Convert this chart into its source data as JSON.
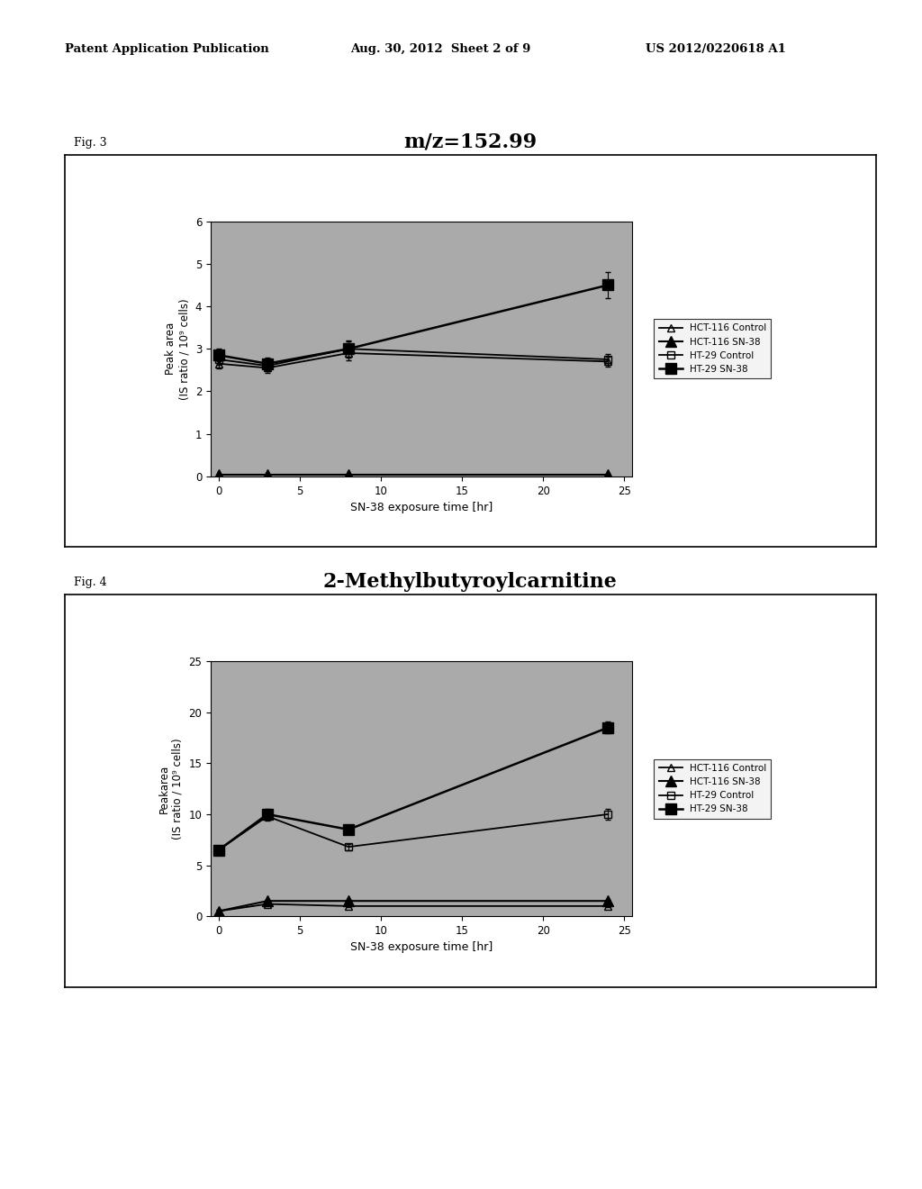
{
  "header_left": "Patent Application Publication",
  "header_center": "Aug. 30, 2012  Sheet 2 of 9",
  "header_right": "US 2012/0220618 A1",
  "fig3_label": "Fig. 3",
  "fig4_label": "Fig. 4",
  "fig3_title": "m/z=152.99",
  "fig4_title": "2-Methylbutyroylcarnitine",
  "xlabel": "SN-38 exposure time [hr]",
  "fig3_ylabel": "Peak area\n(IS ratio / 10⁹ cells)",
  "fig4_ylabel": "Peakarea\n(IS ratio / 10⁹ cells)",
  "x_ticks": [
    0,
    5,
    10,
    15,
    20,
    25
  ],
  "fig3_ylim": [
    0,
    6
  ],
  "fig3_yticks": [
    0,
    1,
    2,
    3,
    4,
    5,
    6
  ],
  "fig4_ylim": [
    0,
    25
  ],
  "fig4_yticks": [
    0,
    5,
    10,
    15,
    20,
    25
  ],
  "fig3_series": {
    "HCT-116 Control": {
      "x": [
        0,
        3,
        8,
        24
      ],
      "y": [
        2.65,
        2.55,
        2.9,
        2.7
      ],
      "yerr": [
        0.12,
        0.12,
        0.18,
        0.12
      ]
    },
    "HCT-116 SN-38": {
      "x": [
        0,
        3,
        8,
        24
      ],
      "y": [
        0.03,
        0.03,
        0.03,
        0.03
      ],
      "yerr": [
        0.01,
        0.01,
        0.01,
        0.01
      ]
    },
    "HT-29 Control": {
      "x": [
        0,
        3,
        8,
        24
      ],
      "y": [
        2.75,
        2.6,
        3.0,
        2.75
      ],
      "yerr": [
        0.12,
        0.12,
        0.18,
        0.12
      ]
    },
    "HT-29 SN-38": {
      "x": [
        0,
        3,
        8,
        24
      ],
      "y": [
        2.85,
        2.65,
        3.0,
        4.5
      ],
      "yerr": [
        0.15,
        0.15,
        0.2,
        0.3
      ]
    }
  },
  "fig4_series": {
    "HCT-116 Control": {
      "x": [
        0,
        3,
        8,
        24
      ],
      "y": [
        0.5,
        1.2,
        1.0,
        1.0
      ],
      "yerr": [
        0.1,
        0.15,
        0.1,
        0.1
      ]
    },
    "HCT-116 SN-38": {
      "x": [
        0,
        3,
        8,
        24
      ],
      "y": [
        0.5,
        1.5,
        1.5,
        1.5
      ],
      "yerr": [
        0.1,
        0.15,
        0.15,
        0.15
      ]
    },
    "HT-29 Control": {
      "x": [
        0,
        3,
        8,
        24
      ],
      "y": [
        6.5,
        9.8,
        6.8,
        10.0
      ],
      "yerr": [
        0.3,
        0.4,
        0.3,
        0.5
      ]
    },
    "HT-29 SN-38": {
      "x": [
        0,
        3,
        8,
        24
      ],
      "y": [
        6.5,
        10.0,
        8.5,
        18.5
      ],
      "yerr": [
        0.3,
        0.5,
        0.4,
        0.6
      ]
    }
  },
  "bg_color": "#aaaaaa",
  "legend_bg": "#f0f0f0",
  "legend_labels": [
    "HCT-116 Control",
    "HCT-116 SN-38",
    "HT-29 Control",
    "HT-29 SN-38"
  ]
}
